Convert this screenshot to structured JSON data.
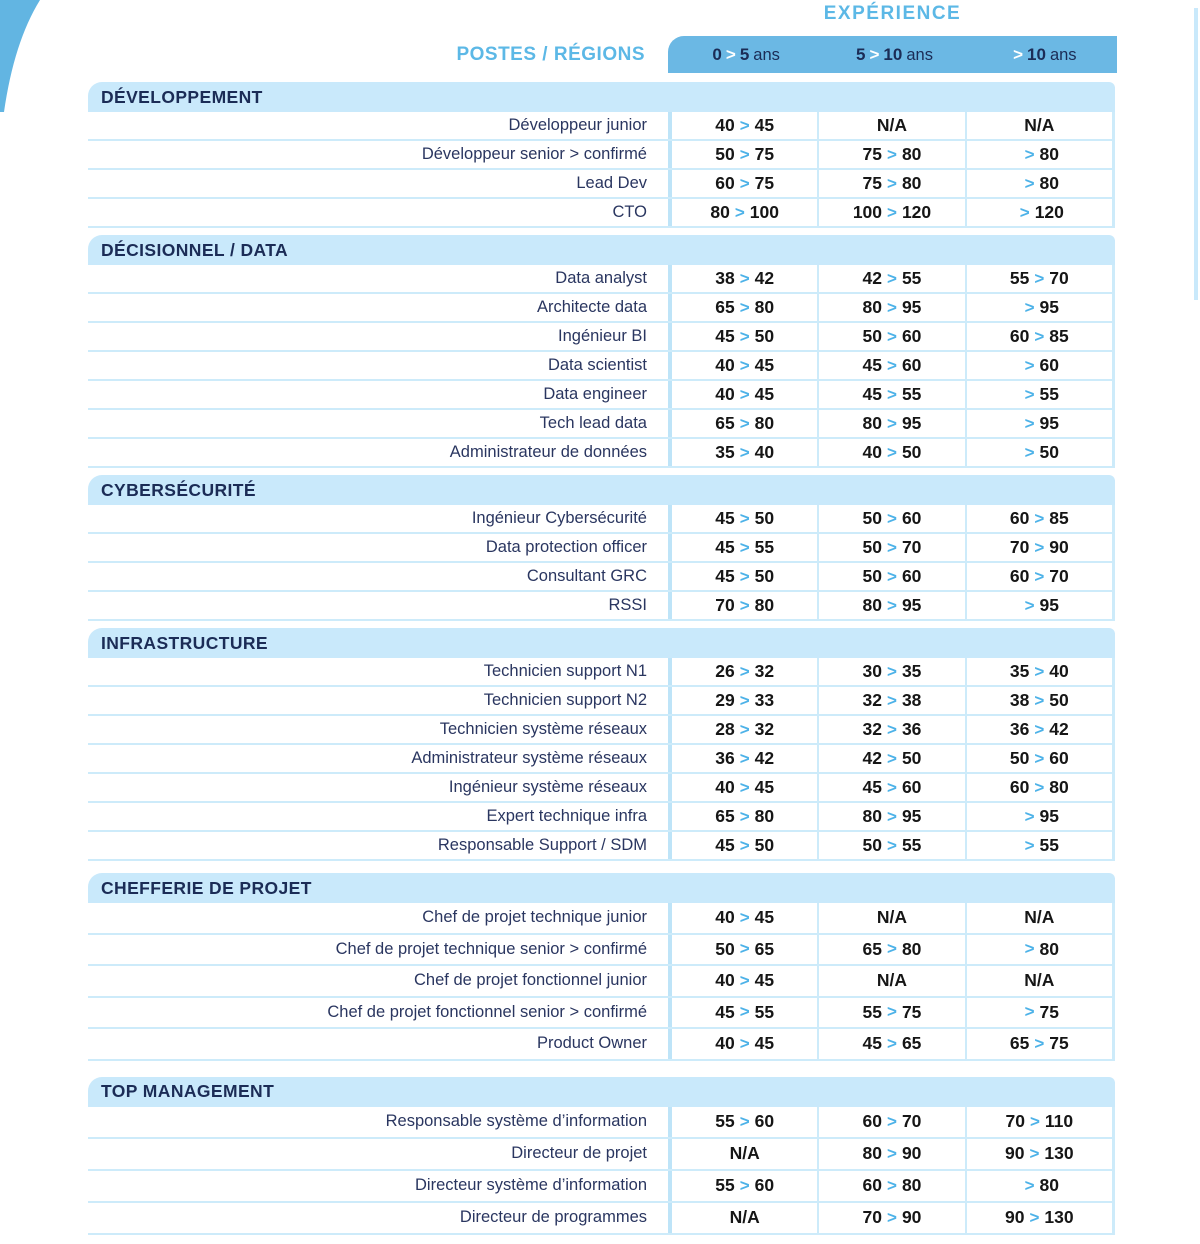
{
  "header": {
    "experience_label": "EXPÉRIENCE",
    "postes_label": "POSTES / RÉGIONS",
    "columns": [
      "0 > 5 ans",
      "5 > 10 ans",
      "> 10 ans"
    ]
  },
  "colors": {
    "band_blue": "#6bb8e4",
    "light_blue": "#c9e9fb",
    "navy": "#1b2c56",
    "chevron_blue": "#4db2e8",
    "accent_text_blue": "#5cb8e6",
    "value_text": "#161616"
  },
  "sections": [
    {
      "title": "DÉVELOPPEMENT",
      "rows": [
        {
          "label": "Développeur junior",
          "values": [
            "40 > 45",
            "N/A",
            "N/A"
          ]
        },
        {
          "label": "Développeur senior > confirmé",
          "values": [
            "50 > 75",
            "75 > 80",
            "> 80"
          ]
        },
        {
          "label": "Lead Dev",
          "values": [
            "60 > 75",
            "75 > 80",
            "> 80"
          ]
        },
        {
          "label": "CTO",
          "values": [
            "80 > 100",
            "100 > 120",
            "> 120"
          ]
        }
      ]
    },
    {
      "title": "DÉCISIONNEL / DATA",
      "rows": [
        {
          "label": "Data analyst",
          "values": [
            "38 > 42",
            "42 > 55",
            "55 > 70"
          ]
        },
        {
          "label": "Architecte data",
          "values": [
            "65 > 80",
            "80 > 95",
            "> 95"
          ]
        },
        {
          "label": "Ingénieur BI",
          "values": [
            "45 > 50",
            "50 > 60",
            "60 > 85"
          ]
        },
        {
          "label": "Data scientist",
          "values": [
            "40 > 45",
            "45 > 60",
            "> 60"
          ]
        },
        {
          "label": "Data engineer",
          "values": [
            "40 > 45",
            "45 > 55",
            "> 55"
          ]
        },
        {
          "label": "Tech lead data",
          "values": [
            "65 > 80",
            "80 > 95",
            "> 95"
          ]
        },
        {
          "label": "Administrateur de données",
          "values": [
            "35 > 40",
            "40 > 50",
            "> 50"
          ]
        }
      ]
    },
    {
      "title": "CYBERSÉCURITÉ",
      "rows": [
        {
          "label": "Ingénieur Cybersécurité",
          "values": [
            "45 > 50",
            "50 > 60",
            "60 > 85"
          ]
        },
        {
          "label": "Data protection officer",
          "values": [
            "45 > 55",
            "50 > 70",
            "70 > 90"
          ]
        },
        {
          "label": "Consultant GRC",
          "values": [
            "45 > 50",
            "50 > 60",
            "60 > 70"
          ]
        },
        {
          "label": "RSSI",
          "values": [
            "70 > 80",
            "80 > 95",
            "> 95"
          ]
        }
      ]
    },
    {
      "title": "INFRASTRUCTURE",
      "rows": [
        {
          "label": "Technicien support N1",
          "values": [
            "26 > 32",
            "30 > 35",
            "35 > 40"
          ]
        },
        {
          "label": "Technicien support N2",
          "values": [
            "29 > 33",
            "32 > 38",
            "38 > 50"
          ]
        },
        {
          "label": "Technicien système réseaux",
          "values": [
            "28 > 32",
            "32 > 36",
            "36 > 42"
          ]
        },
        {
          "label": "Administrateur système réseaux",
          "values": [
            "36 > 42",
            "42 > 50",
            "50 > 60"
          ]
        },
        {
          "label": "Ingénieur système réseaux",
          "values": [
            "40 > 45",
            "45 > 60",
            "60 > 80"
          ]
        },
        {
          "label": "Expert technique infra",
          "values": [
            "65 > 80",
            "80 > 95",
            "> 95"
          ]
        },
        {
          "label": "Responsable Support / SDM",
          "values": [
            "45 > 50",
            "50 > 55",
            "> 55"
          ]
        }
      ]
    },
    {
      "title": "CHEFFERIE DE PROJET",
      "rows": [
        {
          "label": "Chef de projet technique junior",
          "values": [
            "40 > 45",
            "N/A",
            "N/A"
          ]
        },
        {
          "label": "Chef de projet technique senior > confirmé",
          "values": [
            "50 > 65",
            "65 > 80",
            "> 80"
          ]
        },
        {
          "label": "Chef de projet fonctionnel junior",
          "values": [
            "40 > 45",
            "N/A",
            "N/A"
          ]
        },
        {
          "label": "Chef de projet fonctionnel senior > confirmé",
          "values": [
            "45 > 55",
            "55 > 75",
            "> 75"
          ]
        },
        {
          "label": "Product Owner",
          "values": [
            "40 > 45",
            "45 > 65",
            "65 > 75"
          ]
        }
      ]
    },
    {
      "title": "TOP MANAGEMENT",
      "rows": [
        {
          "label": "Responsable système d’information",
          "values": [
            "55 > 60",
            "60 > 70",
            "70 > 110"
          ]
        },
        {
          "label": "Directeur de projet",
          "values": [
            "N/A",
            "80 > 90",
            "90 > 130"
          ]
        },
        {
          "label": "Directeur système d’information",
          "values": [
            "55 > 60",
            "60 > 80",
            "> 80"
          ]
        },
        {
          "label": "Directeur de programmes",
          "values": [
            "N/A",
            "70 > 90",
            "90 > 130"
          ]
        }
      ]
    }
  ]
}
